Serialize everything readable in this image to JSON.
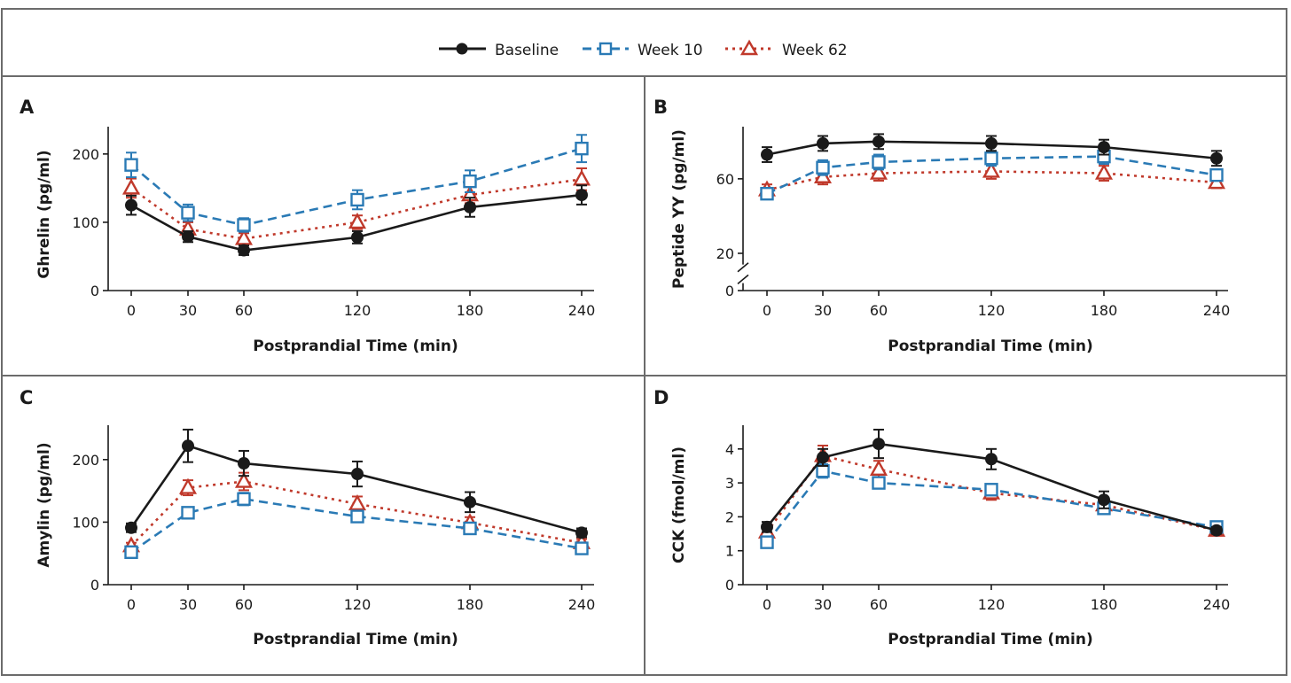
{
  "legend": {
    "baseline_label": "Baseline",
    "week10_label": "Week 10",
    "week62_label": "Week 62"
  },
  "colors": {
    "baseline": "#1a1a1a",
    "week10": "#2a7ab5",
    "week62": "#c0392b"
  },
  "chart_data": [
    {
      "panel": "A",
      "type": "line",
      "xlabel": "Postprandial Time (min)",
      "ylabel": "Ghrelin (pg/ml)",
      "x": [
        0,
        30,
        60,
        120,
        180,
        240
      ],
      "xticks": [
        0,
        30,
        60,
        120,
        180,
        240
      ],
      "yticks": [
        0,
        100,
        200
      ],
      "ylim": [
        0,
        240
      ],
      "axis_break": false,
      "series": [
        {
          "name": "Baseline",
          "key": "baseline",
          "values": [
            125,
            79,
            59,
            78,
            122,
            140
          ],
          "err": [
            14,
            8,
            7,
            9,
            14,
            14
          ]
        },
        {
          "name": "Week 10",
          "key": "week10",
          "values": [
            184,
            114,
            96,
            133,
            160,
            208
          ],
          "err": [
            18,
            12,
            10,
            14,
            16,
            20
          ]
        },
        {
          "name": "Week 62",
          "key": "week62",
          "values": [
            150,
            90,
            76,
            100,
            140,
            163
          ],
          "err": [
            14,
            10,
            8,
            10,
            12,
            16
          ]
        }
      ]
    },
    {
      "panel": "B",
      "type": "line",
      "xlabel": "Postprandial Time (min)",
      "ylabel": "Peptide YY (pg/ml)",
      "x": [
        0,
        30,
        60,
        120,
        180,
        240
      ],
      "xticks": [
        0,
        30,
        60,
        120,
        180,
        240
      ],
      "yticks": [
        0,
        20,
        60
      ],
      "ylim": [
        0,
        88
      ],
      "axis_break": true,
      "series": [
        {
          "name": "Baseline",
          "key": "baseline",
          "values": [
            73,
            79,
            80,
            79,
            77,
            71
          ],
          "err": [
            4,
            4,
            4,
            4,
            4,
            4
          ]
        },
        {
          "name": "Week 10",
          "key": "week10",
          "values": [
            52,
            66,
            69,
            71,
            72,
            62
          ],
          "err": [
            3,
            4,
            4,
            4,
            4,
            3
          ]
        },
        {
          "name": "Week 62",
          "key": "week62",
          "values": [
            54,
            61,
            63,
            64,
            63,
            58
          ],
          "err": [
            3,
            4,
            4,
            4,
            4,
            3
          ]
        }
      ]
    },
    {
      "panel": "C",
      "type": "line",
      "xlabel": "Postprandial Time (min)",
      "ylabel": "Amylin (pg/ml)",
      "x": [
        0,
        30,
        60,
        120,
        180,
        240
      ],
      "xticks": [
        0,
        30,
        60,
        120,
        180,
        240
      ],
      "yticks": [
        0,
        100,
        200
      ],
      "ylim": [
        0,
        255
      ],
      "axis_break": false,
      "series": [
        {
          "name": "Baseline",
          "key": "baseline",
          "values": [
            91,
            222,
            194,
            177,
            132,
            83
          ],
          "err": [
            7,
            26,
            20,
            20,
            16,
            7
          ]
        },
        {
          "name": "Week 10",
          "key": "week10",
          "values": [
            52,
            115,
            137,
            109,
            90,
            58
          ],
          "err": [
            5,
            8,
            10,
            8,
            7,
            5
          ]
        },
        {
          "name": "Week 62",
          "key": "week62",
          "values": [
            62,
            155,
            165,
            129,
            99,
            67
          ],
          "err": [
            5,
            12,
            14,
            12,
            9,
            6
          ]
        }
      ]
    },
    {
      "panel": "D",
      "type": "line",
      "xlabel": "Postprandial Time (min)",
      "ylabel": "CCK (fmol/ml)",
      "x": [
        0,
        30,
        60,
        120,
        180,
        240
      ],
      "xticks": [
        0,
        30,
        60,
        120,
        180,
        240
      ],
      "yticks": [
        0,
        1,
        2,
        3,
        4
      ],
      "ylim": [
        0,
        4.7
      ],
      "axis_break": false,
      "series": [
        {
          "name": "Baseline",
          "key": "baseline",
          "values": [
            1.7,
            3.75,
            4.15,
            3.7,
            2.5,
            1.6
          ],
          "err": [
            0.15,
            0.25,
            0.42,
            0.3,
            0.25,
            0.1
          ]
        },
        {
          "name": "Week 10",
          "key": "week10",
          "values": [
            1.25,
            3.35,
            3.0,
            2.8,
            2.25,
            1.7
          ],
          "err": [
            0.1,
            0.2,
            0.15,
            0.15,
            0.1,
            0.1
          ]
        },
        {
          "name": "Week 62",
          "key": "week62",
          "values": [
            1.55,
            3.8,
            3.4,
            2.7,
            2.35,
            1.6
          ],
          "err": [
            0.15,
            0.3,
            0.25,
            0.2,
            0.15,
            0.1
          ]
        }
      ]
    }
  ]
}
